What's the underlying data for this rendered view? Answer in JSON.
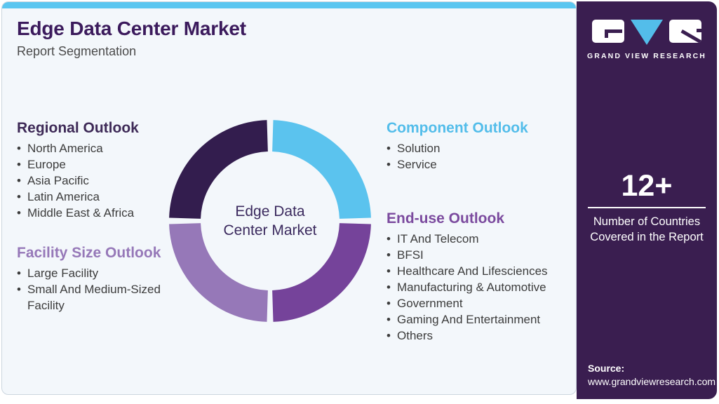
{
  "page": {
    "title": "Edge Data Center Market",
    "subtitle": "Report Segmentation"
  },
  "sections": {
    "regional": {
      "title": "Regional Outlook",
      "items": [
        "North America",
        "Europe",
        "Asia Pacific",
        "Latin America",
        "Middle East & Africa"
      ]
    },
    "facility": {
      "title": "Facility Size Outlook",
      "items": [
        "Large Facility",
        "Small And Medium-Sized Facility"
      ]
    },
    "component": {
      "title": "Component Outlook",
      "items": [
        "Solution",
        "Service"
      ]
    },
    "end_use": {
      "title": "End-use Outlook",
      "items": [
        "IT And Telecom",
        "BFSI",
        "Healthcare And Lifesciences",
        "Manufacturing & Automotive",
        "Government",
        "Gaming And Entertainment",
        "Others"
      ]
    }
  },
  "chart_data": {
    "type": "pie",
    "donut": true,
    "center_label": "Edge Data Center Market",
    "center_label_lines": [
      "Edge Data",
      "Center Market"
    ],
    "segments": [
      {
        "name": "Component Outlook",
        "value": 25,
        "color": "#5bc3ee"
      },
      {
        "name": "End-use Outlook",
        "value": 25,
        "color": "#75439a"
      },
      {
        "name": "Facility Size Outlook",
        "value": 25,
        "color": "#9678b8"
      },
      {
        "name": "Regional Outlook",
        "value": 25,
        "color": "#331d4e"
      }
    ]
  },
  "colors": {
    "top_strip": "#5bc6f0",
    "card_background": "#f3f7fb",
    "sidebar_background": "#3a1e50",
    "title_text": "#3b1a5c",
    "regional_accent": "#3e2a57",
    "facility_accent": "#9678b8",
    "component_accent": "#53bdea",
    "end_use_accent": "#7b4a9e"
  },
  "sidebar": {
    "brand": "GRAND VIEW RESEARCH",
    "stat_value": "12+",
    "stat_caption": "Number of Countries Covered in the Report",
    "source_label": "Source:",
    "source_url": "www.grandviewresearch.com"
  }
}
